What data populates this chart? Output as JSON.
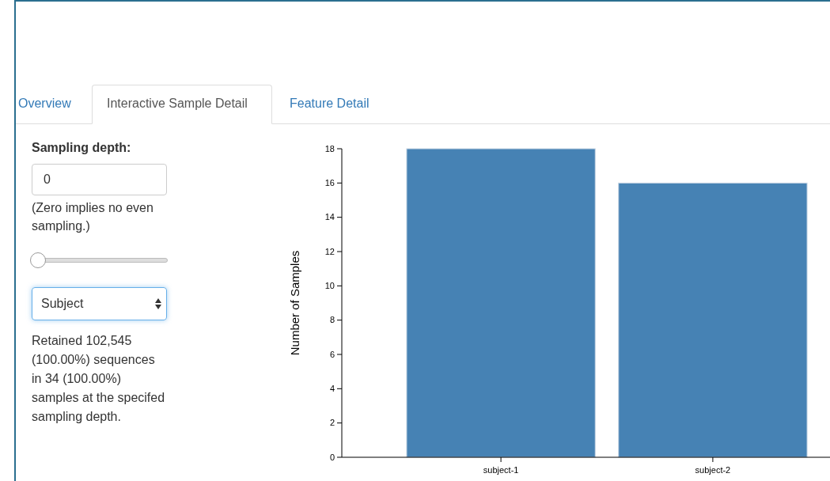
{
  "chart_data": {
    "type": "bar",
    "ylabel": "Number of Samples",
    "categories": [
      "subject-1",
      "subject-2"
    ],
    "values": [
      18,
      16
    ],
    "color": "#4682b4",
    "ylim": [
      0,
      18
    ],
    "yticks": [
      0,
      2,
      4,
      6,
      8,
      10,
      12,
      14,
      16,
      18
    ],
    "annotations": [
      "Overview",
      "Interactive Sample Detail",
      "Feature Detail",
      "Sampling depth:",
      "0",
      "(Zero implies no even sampling.)",
      "Subject",
      "Retained 102,545 (100.00%) sequences in 34 (100.00%) samples at the specifed sampling depth."
    ]
  }
}
